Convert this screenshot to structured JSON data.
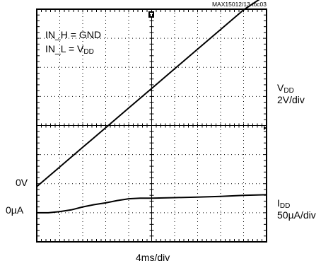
{
  "figure_id": "MAX15012/13 toc03",
  "annotations": {
    "line1": "IN_H = GND",
    "line2_main": "IN_L = V",
    "line2_sub": "DD"
  },
  "channels": [
    {
      "name_main": "V",
      "name_sub": "DD",
      "scale": "2V/div",
      "ground_label": "0V"
    },
    {
      "name_main": "I",
      "name_sub": "DD",
      "scale": "50µA/div",
      "ground_label": "0µA"
    }
  ],
  "xlabel": "4ms/div",
  "colors": {
    "trace": "#000000",
    "grid": "#000000",
    "background": "#ffffff"
  },
  "chart_data": {
    "type": "line",
    "title": "",
    "xlabel": "4ms/div",
    "x_unit": "ms",
    "xlim": [
      0,
      40
    ],
    "grid": {
      "x_divisions": 10,
      "y_divisions": 8,
      "style": "dotted"
    },
    "trigger_marker": "top, at the center division",
    "series": [
      {
        "name": "VDD",
        "unit": "V",
        "scale_per_div": 2,
        "ground_div_from_bottom": 1.9,
        "x": [
          0,
          4,
          8,
          12,
          16,
          20,
          24,
          28,
          32,
          36,
          40
        ],
        "y": [
          0,
          1.35,
          2.7,
          4.05,
          5.4,
          6.75,
          8.1,
          9.45,
          10.8,
          12.15,
          13.2
        ]
      },
      {
        "name": "IDD",
        "unit": "µA",
        "scale_per_div": 50,
        "ground_div_from_bottom": 1.0,
        "x": [
          0,
          2,
          4,
          6,
          8,
          10,
          12,
          14,
          16,
          18,
          20,
          24,
          28,
          32,
          36,
          40
        ],
        "y": [
          0,
          0,
          2,
          5,
          10,
          14,
          17,
          21,
          24,
          25,
          25,
          26,
          27,
          28,
          30,
          31
        ]
      }
    ]
  }
}
